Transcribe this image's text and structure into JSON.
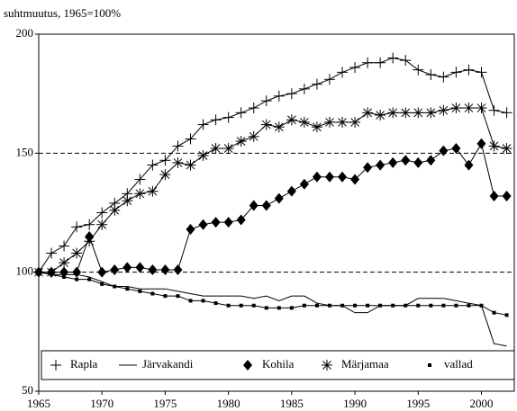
{
  "chart_data": {
    "type": "line",
    "title": "suhtmuutus, 1965=100%",
    "x": [
      1965,
      1966,
      1967,
      1968,
      1969,
      1970,
      1971,
      1972,
      1973,
      1974,
      1975,
      1976,
      1977,
      1978,
      1979,
      1980,
      1981,
      1982,
      1983,
      1984,
      1985,
      1986,
      1987,
      1988,
      1989,
      1990,
      1991,
      1992,
      1993,
      1994,
      1995,
      1996,
      1997,
      1998,
      1999,
      2000,
      2001,
      2002
    ],
    "xlim": [
      1965,
      2002.6
    ],
    "xticks": [
      1965,
      1970,
      1975,
      1980,
      1985,
      1990,
      1995,
      2000
    ],
    "ylim": [
      50,
      200
    ],
    "yticks": [
      50,
      100,
      150,
      200
    ],
    "reference_lines": [
      100,
      150
    ],
    "series": [
      {
        "name": "Rapla",
        "color": "#000000",
        "marker": "plus",
        "values": [
          100,
          108,
          111,
          119,
          120,
          125,
          129,
          133,
          139,
          145,
          147,
          153,
          156,
          162,
          164,
          165,
          167,
          169,
          172,
          174,
          175,
          177,
          179,
          181,
          184,
          186,
          188,
          188,
          190,
          189,
          185,
          183,
          182,
          184,
          185,
          184,
          168,
          167
        ]
      },
      {
        "name": "Järvakandi",
        "color": "#000000",
        "marker": "none",
        "values": [
          100,
          99,
          99,
          99,
          98,
          96,
          94,
          94,
          93,
          93,
          93,
          92,
          91,
          90,
          90,
          90,
          90,
          89,
          90,
          88,
          90,
          90,
          87,
          86,
          86,
          83,
          83,
          86,
          86,
          86,
          89,
          89,
          89,
          88,
          87,
          86,
          70,
          69
        ]
      },
      {
        "name": "Kohila",
        "color": "#000000",
        "marker": "diamond",
        "values": [
          100,
          100,
          100,
          100,
          115,
          100,
          101,
          102,
          102,
          101,
          101,
          101,
          118,
          120,
          121,
          121,
          122,
          128,
          128,
          131,
          134,
          137,
          140,
          140,
          140,
          139,
          144,
          145,
          146,
          147,
          146,
          147,
          151,
          152,
          145,
          154,
          132,
          132
        ]
      },
      {
        "name": "Märjamaa",
        "color": "#000000",
        "marker": "asterisk",
        "values": [
          100,
          100,
          104,
          108,
          113,
          120,
          126,
          130,
          133,
          134,
          141,
          146,
          145,
          149,
          152,
          152,
          155,
          157,
          162,
          161,
          164,
          163,
          161,
          163,
          163,
          163,
          167,
          166,
          167,
          167,
          167,
          167,
          168,
          169,
          169,
          169,
          153,
          152
        ]
      },
      {
        "name": "vallad",
        "color": "#000000",
        "marker": "square",
        "values": [
          100,
          99,
          98,
          97,
          97,
          95,
          94,
          93,
          92,
          91,
          90,
          90,
          88,
          88,
          87,
          86,
          86,
          86,
          85,
          85,
          85,
          86,
          86,
          86,
          86,
          86,
          86,
          86,
          86,
          86,
          86,
          86,
          86,
          86,
          86,
          86,
          83,
          82
        ]
      }
    ]
  }
}
